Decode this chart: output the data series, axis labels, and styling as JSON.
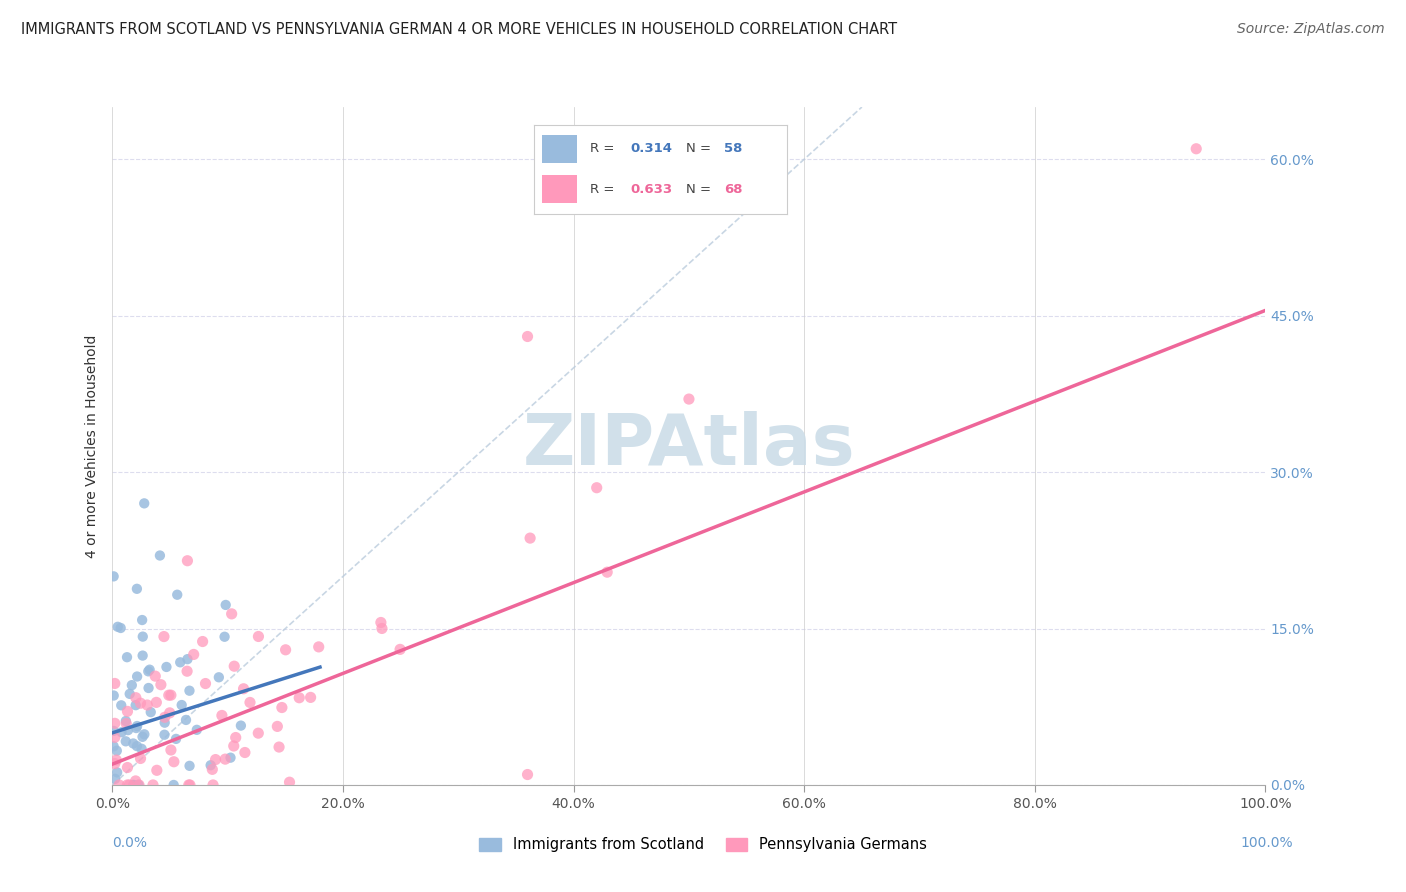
{
  "title": "IMMIGRANTS FROM SCOTLAND VS PENNSYLVANIA GERMAN 4 OR MORE VEHICLES IN HOUSEHOLD CORRELATION CHART",
  "source": "Source: ZipAtlas.com",
  "ylabel": "4 or more Vehicles in Household",
  "watermark": "ZIPAtlas",
  "legend_label_blue": "Immigrants from Scotland",
  "legend_label_pink": "Pennsylvania Germans",
  "xlim": [
    0.0,
    1.0
  ],
  "ylim": [
    0.0,
    0.65
  ],
  "x_tick_labels": [
    "0.0%",
    "",
    "",
    "",
    "",
    "",
    "",
    "",
    "",
    "",
    "20.0%",
    "",
    "",
    "",
    "",
    "",
    "",
    "",
    "",
    "",
    "40.0%",
    "",
    "",
    "",
    "",
    "",
    "",
    "",
    "",
    "",
    "60.0%",
    "",
    "",
    "",
    "",
    "",
    "",
    "",
    "",
    "",
    "80.0%",
    "",
    "",
    "",
    "",
    "",
    "",
    "",
    "",
    "",
    "100.0%"
  ],
  "x_tick_vals_major": [
    0.0,
    0.2,
    0.4,
    0.6,
    0.8,
    1.0
  ],
  "x_tick_labels_major": [
    "0.0%",
    "20.0%",
    "40.0%",
    "60.0%",
    "80.0%",
    "100.0%"
  ],
  "y_tick_vals": [
    0.0,
    0.15,
    0.3,
    0.45,
    0.6
  ],
  "y_tick_labels_right": [
    "0.0%",
    "15.0%",
    "30.0%",
    "45.0%",
    "60.0%"
  ],
  "blue_color": "#99BBDD",
  "pink_color": "#FF99BB",
  "blue_line_color": "#4477BB",
  "pink_line_color": "#EE6699",
  "diag_line_color": "#BBCCDD",
  "background_color": "#FFFFFF",
  "grid_color": "#DDDDEE",
  "title_fontsize": 10.5,
  "tick_fontsize": 10,
  "source_fontsize": 10,
  "ylabel_fontsize": 10,
  "watermark_color": "#CCDDE8",
  "watermark_alpha": 0.9,
  "right_tick_color": "#6699CC",
  "bottom_label_left_color": "#6699CC",
  "bottom_label_right_color": "#6699CC"
}
